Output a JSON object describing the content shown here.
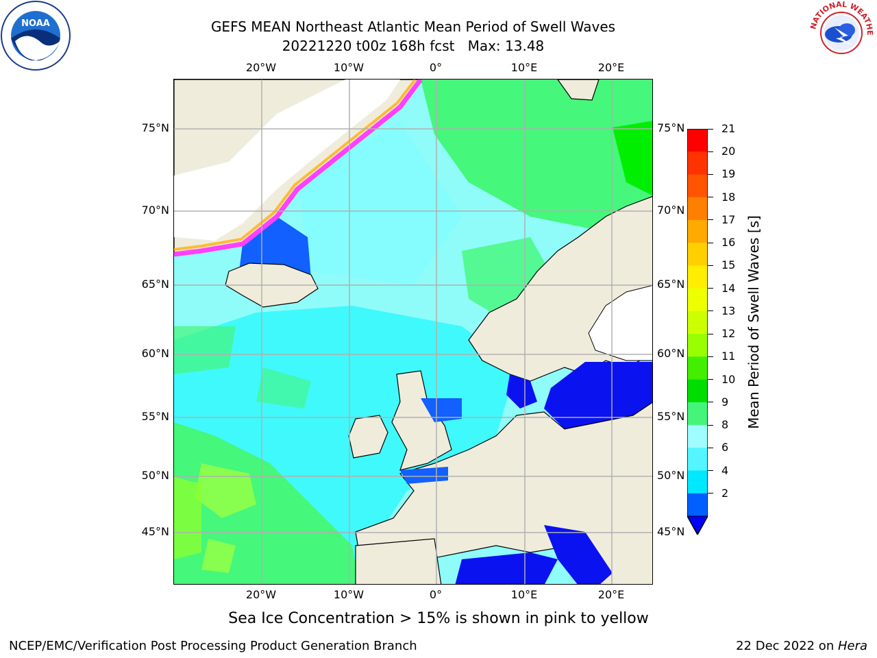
{
  "title": {
    "line1": "GEFS MEAN Northeast Atlantic Mean Period of Swell Waves",
    "line2": "20221220 t00z 168h fcst   Max: 13.48"
  },
  "map": {
    "lon_labels": [
      "20°W",
      "10°W",
      "0°",
      "10°E",
      "20°E"
    ],
    "lat_labels": [
      "75°N",
      "70°N",
      "65°N",
      "60°N",
      "55°N",
      "50°N",
      "45°N"
    ],
    "colors": {
      "land": "#efecdc",
      "ocean_base": "#8ffcf9",
      "cyan": "#00f5ff",
      "light_cyan": "#9dfcff",
      "green": "#45f77a",
      "bright_green": "#00ee00",
      "blue": "#1160ff",
      "dark_blue": "#0a12f0",
      "ice_pink": "#ff40ff",
      "ice_orange": "#ffbb33",
      "ice_yellow": "#ffee44",
      "grid": "#b0b0b0"
    }
  },
  "colorbar": {
    "label": "Mean Period of Swell Waves [s]",
    "ticks": [
      "21",
      "20",
      "19",
      "18",
      "17",
      "16",
      "15",
      "14",
      "13",
      "12",
      "11",
      "10",
      "9",
      "8",
      "6",
      "4",
      "2"
    ],
    "colors": [
      "#ff0000",
      "#ff3300",
      "#ff5500",
      "#ff8000",
      "#ffaa00",
      "#ffd000",
      "#ffee00",
      "#eeff00",
      "#ccff00",
      "#99ff00",
      "#44ee00",
      "#00dd00",
      "#44f57a",
      "#9ffcff",
      "#55f5ff",
      "#00e8ff",
      "#0060ff"
    ],
    "extend_color": "#0000ff"
  },
  "footnote": "Sea Ice Concentration > 15% is shown in pink to yellow",
  "credit": "NCEP/EMC/Verification Post Processing Product Generation Branch",
  "date": {
    "text": "22 Dec 2022 on ",
    "host": "Hera"
  },
  "logos": {
    "left": "NOAA",
    "right": "NATIONAL WEATHER SERVICE"
  }
}
